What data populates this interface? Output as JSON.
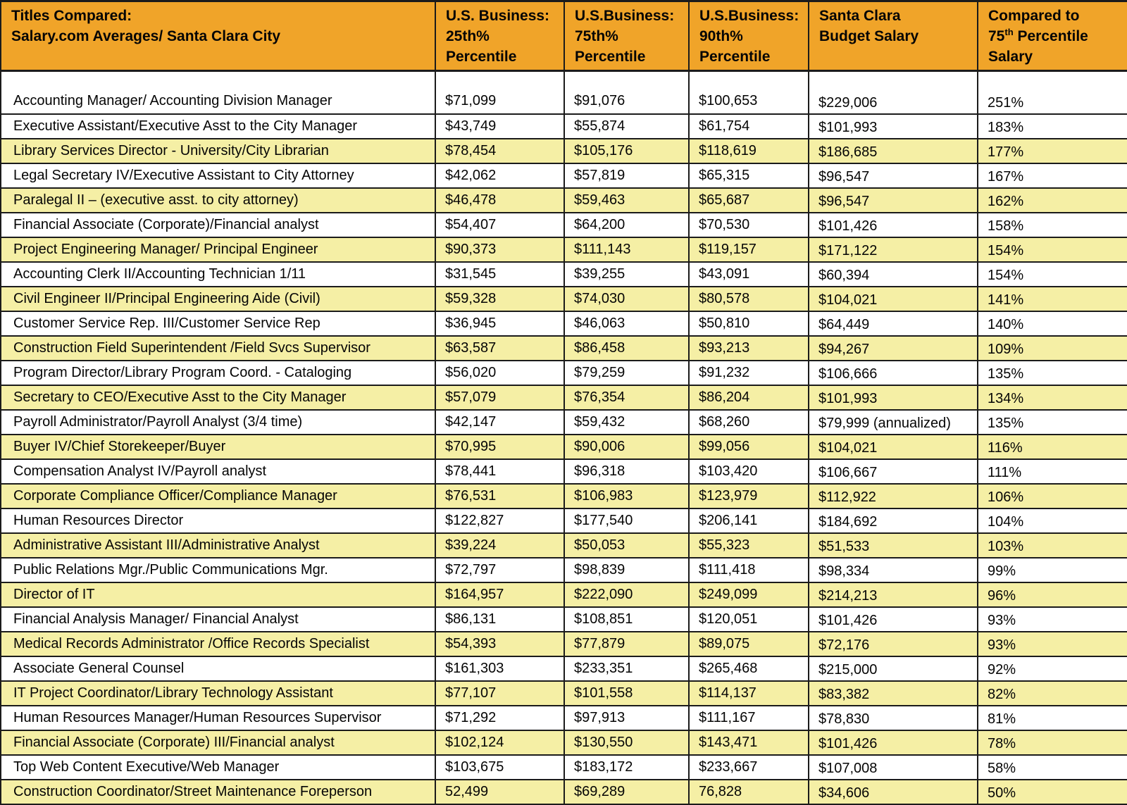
{
  "colors": {
    "header_bg": "#F0A429",
    "row_bg": "#FFFFFF",
    "row_alt_bg": "#F5EFA5",
    "border": "#1B1B1B"
  },
  "table": {
    "header": {
      "title": "Titles Compared:\nSalary.com Averages/ Santa Clara City",
      "p25": "U.S. Business:\n25th%\nPercentile",
      "p75": "U.S.Business:\n75th%\nPercentile",
      "p90": "U.S.Business:\n90th%\nPercentile",
      "budget": "Santa Clara\nBudget Salary",
      "compared_prefix": "Compared to\n75",
      "compared_sup": "th",
      "compared_suffix": " Percentile\nSalary"
    },
    "rows": [
      {
        "title": "Accounting Manager/ Accounting Division Manager",
        "p25": "$71,099",
        "p75": "$91,076",
        "p90": "$100,653",
        "budget": "$229,006",
        "compared": "251%",
        "shade": "white"
      },
      {
        "title": "Executive Assistant/Executive Asst to the City Manager",
        "p25": "$43,749",
        "p75": "$55,874",
        "p90": "$61,754",
        "budget": "$101,993",
        "compared": "183%",
        "shade": "white"
      },
      {
        "title": "Library Services Director - University/City Librarian",
        "p25": "$78,454",
        "p75": "$105,176",
        "p90": "$118,619",
        "budget": "$186,685",
        "compared": "177%",
        "shade": "yellow"
      },
      {
        "title": "Legal Secretary IV/Executive Assistant to City Attorney",
        "p25": "$42,062",
        "p75": "$57,819",
        "p90": "$65,315",
        "budget": "$96,547",
        "compared": "167%",
        "shade": "white"
      },
      {
        "title": "Paralegal II – (executive asst. to city attorney)",
        "p25": "$46,478",
        "p75": "$59,463",
        "p90": "$65,687",
        "budget": "$96,547",
        "compared": "162%",
        "shade": "yellow"
      },
      {
        "title": "Financial Associate (Corporate)/Financial analyst",
        "p25": "$54,407",
        "p75": "$64,200",
        "p90": "$70,530",
        "budget": "$101,426",
        "compared": "158%",
        "shade": "white"
      },
      {
        "title": "Project Engineering Manager/ Principal Engineer",
        "p25": "$90,373",
        "p75": "$111,143",
        "p90": "$119,157",
        "budget": "$171,122",
        "compared": "154%",
        "shade": "yellow"
      },
      {
        "title": "Accounting Clerk II/Accounting Technician 1/11",
        "p25": "$31,545",
        "p75": "$39,255",
        "p90": "$43,091",
        "budget": "$60,394",
        "compared": "154%",
        "shade": "white"
      },
      {
        "title": "Civil Engineer II/Principal Engineering Aide (Civil)",
        "p25": "$59,328",
        "p75": "$74,030",
        "p90": "$80,578",
        "budget": "$104,021",
        "compared": "141%",
        "shade": "yellow"
      },
      {
        "title": "Customer Service Rep. III/Customer Service Rep",
        "p25": "$36,945",
        "p75": "$46,063",
        "p90": "$50,810",
        "budget": "$64,449",
        "compared": "140%",
        "shade": "white"
      },
      {
        "title": "Construction Field Superintendent /Field Svcs Supervisor",
        "p25": "$63,587",
        "p75": "$86,458",
        "p90": "$93,213",
        "budget": "$94,267",
        "compared": "109%",
        "shade": "yellow"
      },
      {
        "title": "Program Director/Library Program Coord. - Cataloging",
        "p25": "$56,020",
        "p75": "$79,259",
        "p90": "$91,232",
        "budget": "$106,666",
        "compared": "135%",
        "shade": "white"
      },
      {
        "title": "Secretary to CEO/Executive Asst to the City Manager",
        "p25": "$57,079",
        "p75": "$76,354",
        "p90": "$86,204",
        "budget": "$101,993",
        "compared": "134%",
        "shade": "yellow"
      },
      {
        "title": "Payroll Administrator/Payroll Analyst (3/4 time)",
        "p25": "$42,147",
        "p75": "$59,432",
        "p90": "$68,260",
        "budget": "$79,999 (annualized)",
        "compared": "135%",
        "shade": "white"
      },
      {
        "title": "Buyer IV/Chief Storekeeper/Buyer",
        "p25": "$70,995",
        "p75": "$90,006",
        "p90": "$99,056",
        "budget": "$104,021",
        "compared": "116%",
        "shade": "yellow"
      },
      {
        "title": "Compensation Analyst IV/Payroll analyst",
        "p25": "$78,441",
        "p75": "$96,318",
        "p90": "$103,420",
        "budget": "$106,667",
        "compared": "111%",
        "shade": "white"
      },
      {
        "title": "Corporate Compliance Officer/Compliance Manager",
        "p25": "$76,531",
        "p75": "$106,983",
        "p90": "$123,979",
        "budget": "$112,922",
        "compared": "106%",
        "shade": "yellow"
      },
      {
        "title": "Human Resources Director",
        "p25": "$122,827",
        "p75": "$177,540",
        "p90": "$206,141",
        "budget": "$184,692",
        "compared": "104%",
        "shade": "white"
      },
      {
        "title": "Administrative Assistant III/Administrative Analyst",
        "p25": "$39,224",
        "p75": "$50,053",
        "p90": "$55,323",
        "budget": "$51,533",
        "compared": "103%",
        "shade": "yellow"
      },
      {
        "title": "Public Relations Mgr./Public Communications Mgr.",
        "p25": "$72,797",
        "p75": "$98,839",
        "p90": "$111,418",
        "budget": "$98,334",
        "compared": "99%",
        "shade": "white"
      },
      {
        "title": "Director of IT",
        "p25": "$164,957",
        "p75": "$222,090",
        "p90": "$249,099",
        "budget": "$214,213",
        "compared": "96%",
        "shade": "yellow"
      },
      {
        "title": "Financial Analysis Manager/ Financial Analyst",
        "p25": "$86,131",
        "p75": "$108,851",
        "p90": "$120,051",
        "budget": "$101,426",
        "compared": "93%",
        "shade": "white"
      },
      {
        "title": "Medical Records Administrator /Office Records Specialist",
        "p25": "$54,393",
        "p75": "$77,879",
        "p90": "$89,075",
        "budget": "$72,176",
        "compared": "93%",
        "shade": "yellow"
      },
      {
        "title": "Associate General Counsel",
        "p25": "$161,303",
        "p75": "$233,351",
        "p90": "$265,468",
        "budget": "$215,000",
        "compared": "92%",
        "shade": "white"
      },
      {
        "title": "IT Project Coordinator/Library Technology Assistant",
        "p25": "$77,107",
        "p75": "$101,558",
        "p90": "$114,137",
        "budget": "$83,382",
        "compared": "82%",
        "shade": "yellow"
      },
      {
        "title": "Human Resources Manager/Human Resources Supervisor",
        "p25": "$71,292",
        "p75": "$97,913",
        "p90": "$111,167",
        "budget": "$78,830",
        "compared": "81%",
        "shade": "white"
      },
      {
        "title": "Financial Associate (Corporate) III/Financial analyst",
        "p25": "$102,124",
        "p75": "$130,550",
        "p90": "$143,471",
        "budget": "$101,426",
        "compared": "78%",
        "shade": "yellow"
      },
      {
        "title": "Top Web Content Executive/Web Manager",
        "p25": "$103,675",
        "p75": "$183,172",
        "p90": "$233,667",
        "budget": "$107,008",
        "compared": "58%",
        "shade": "white"
      },
      {
        "title": "Construction Coordinator/Street Maintenance Foreperson",
        "p25": "52,499",
        "p75": "$69,289",
        "p90": "76,828",
        "budget": "$34,606",
        "compared": "50%",
        "shade": "yellow"
      }
    ]
  }
}
